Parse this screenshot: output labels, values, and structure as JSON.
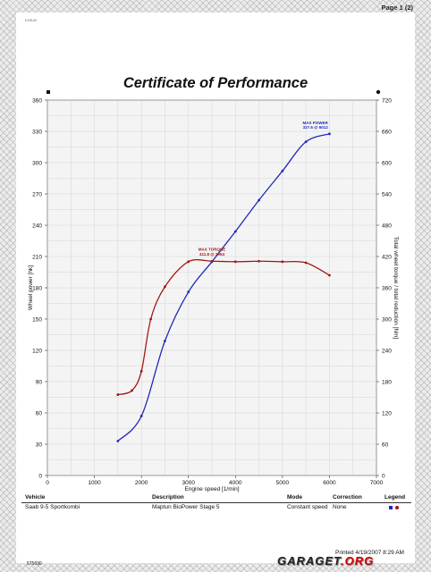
{
  "page_label": "Page 1 (2)",
  "top_tiny_text": "KGE40",
  "title": "Certificate of Performance",
  "chart_data": {
    "type": "line",
    "title": "Certificate of Performance",
    "xlabel": "Engine speed [1/min]",
    "ylabel": "Wheel power [hk]",
    "y2label": "Total wheel torque / total reduction [Nm]",
    "xlim": [
      0,
      7000
    ],
    "ylim": [
      0,
      360
    ],
    "y2lim": [
      0,
      720
    ],
    "xticks": [
      0,
      1000,
      2000,
      3000,
      4000,
      5000,
      6000,
      7000
    ],
    "yticks": [
      0,
      30,
      60,
      90,
      120,
      150,
      180,
      210,
      240,
      270,
      300,
      330,
      360
    ],
    "y2ticks": [
      0,
      60,
      120,
      180,
      240,
      300,
      360,
      420,
      480,
      540,
      600,
      660,
      720
    ],
    "grid": true,
    "series": [
      {
        "name": "Wheel power",
        "axis": "left",
        "color": "#1f2ab8",
        "x": [
          1500,
          2000,
          2500,
          3000,
          3500,
          4000,
          4500,
          5000,
          5500,
          6000
        ],
        "y": [
          33,
          57,
          129,
          176,
          205,
          234,
          264,
          292,
          320,
          327.6
        ]
      },
      {
        "name": "Wheel torque",
        "axis": "right",
        "color": "#a01818",
        "x": [
          1500,
          1800,
          2000,
          2200,
          2500,
          3000,
          3500,
          4000,
          4500,
          5000,
          5500,
          6000
        ],
        "y": [
          155,
          163,
          200,
          300,
          362,
          410,
          411,
          410,
          411,
          410,
          408,
          384
        ]
      }
    ],
    "annotations": [
      {
        "label": "MAX POWER",
        "value": "327.6 @ 6012",
        "color": "#1f2ab8"
      },
      {
        "label": "MAX TORQUE",
        "value": "411.8 @ 3954",
        "color": "#a01818"
      }
    ]
  },
  "table": {
    "headers": {
      "vehicle": "Vehicle",
      "description": "Description",
      "mode": "Mode",
      "correction": "Correction",
      "legend": "Legend"
    },
    "row": {
      "vehicle": "Saab 9-5 Sportkombi",
      "description": "Maptun BioPower Stage 5",
      "mode": "Constant speed",
      "correction": "None"
    },
    "legend_colors": [
      "#1f2ab8",
      "#a01818"
    ]
  },
  "printed": "Printed 4/19/2007 8:29 AM",
  "footer_id": "575690",
  "logo": {
    "main": "GARAGET",
    "accent": ".ORG"
  }
}
